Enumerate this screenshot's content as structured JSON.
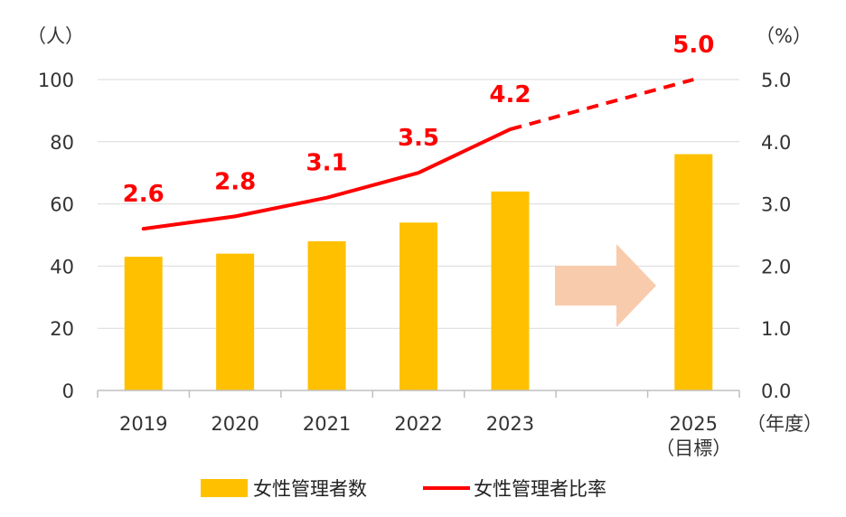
{
  "chart_data": {
    "type": "bar",
    "categories": [
      "2019",
      "2020",
      "2021",
      "2022",
      "2023",
      "",
      "2025"
    ],
    "category_sublabels": [
      "",
      "",
      "",
      "",
      "",
      "",
      "（目標）"
    ],
    "series": [
      {
        "name": "女性管理者数",
        "type": "bar",
        "axis": "left",
        "values": [
          43,
          44,
          48,
          54,
          64,
          null,
          76
        ],
        "color": "#ffc000"
      },
      {
        "name": "女性管理者比率",
        "type": "line",
        "axis": "right",
        "values": [
          2.6,
          2.8,
          3.1,
          3.5,
          4.2,
          null,
          5.0
        ],
        "labels": [
          "2.6",
          "2.8",
          "3.1",
          "3.5",
          "4.2",
          "",
          "5.0"
        ],
        "color": "#ff0000",
        "dashed_segment": "2023-2025"
      }
    ],
    "y_left": {
      "unit": "（人）",
      "ylim": [
        0,
        100
      ],
      "ticks": [
        "0",
        "20",
        "40",
        "60",
        "80",
        "100"
      ]
    },
    "y_right": {
      "unit": "（%）",
      "ylim": [
        0,
        5
      ],
      "ticks": [
        "0.0",
        "1.0",
        "2.0",
        "3.0",
        "4.0",
        "5.0"
      ]
    },
    "x_unit": "（年度）",
    "grid": "horizontal",
    "legend": "bottom",
    "arrow_color": "#f8cbad"
  }
}
